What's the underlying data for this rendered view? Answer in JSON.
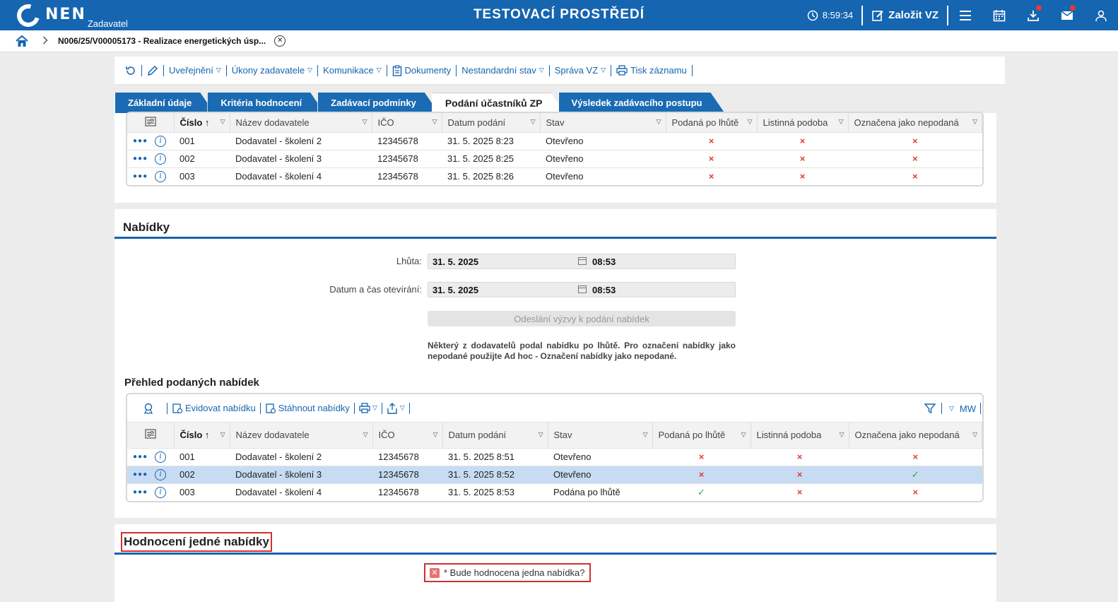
{
  "header": {
    "logo": "NEN",
    "logo_sub": "Zadavatel",
    "env_title": "TESTOVACÍ PROSTŘEDÍ",
    "clock": "8:59:34",
    "create_label": "Založit VZ"
  },
  "breadcrumb": {
    "text": "N006/25/V00005173 - Realizace energetických úsp..."
  },
  "actions": {
    "publish": "Uveřejnění",
    "acts": "Úkony zadavatele",
    "communication": "Komunikace",
    "documents": "Dokumenty",
    "nonstandard": "Nestandardní stav",
    "management": "Správa VZ",
    "print": "Tisk záznamu"
  },
  "tabs": [
    {
      "label": "Základní údaje"
    },
    {
      "label": "Kritéria hodnocení"
    },
    {
      "label": "Zadávací podmínky"
    },
    {
      "label": "Podání účastníků ZP"
    },
    {
      "label": "Výsledek zadávacího postupu"
    }
  ],
  "columns": {
    "number": "Číslo",
    "supplier": "Název dodavatele",
    "ico": "IČO",
    "date": "Datum podání",
    "state": "Stav",
    "late": "Podaná po lhůtě",
    "paper": "Listinná podoba",
    "marked": "Označena jako nepodaná"
  },
  "grid1": {
    "rows": [
      {
        "number": "001",
        "supplier": "Dodavatel - školení 2",
        "ico": "12345678",
        "date": "31. 5. 2025 8:23",
        "state": "Otevřeno",
        "late": "x",
        "paper": "x",
        "marked": "x"
      },
      {
        "number": "002",
        "supplier": "Dodavatel - školení 3",
        "ico": "12345678",
        "date": "31. 5. 2025 8:25",
        "state": "Otevřeno",
        "late": "x",
        "paper": "x",
        "marked": "x"
      },
      {
        "number": "003",
        "supplier": "Dodavatel - školení 4",
        "ico": "12345678",
        "date": "31. 5. 2025 8:26",
        "state": "Otevřeno",
        "late": "x",
        "paper": "x",
        "marked": "x"
      }
    ]
  },
  "offers": {
    "title": "Nabídky",
    "deadline_label": "Lhůta:",
    "deadline_date": "31. 5. 2025",
    "deadline_time": "08:53",
    "opening_label": "Datum a čas otevírání:",
    "opening_date": "31. 5. 2025",
    "opening_time": "08:53",
    "send_button": "Odeslání výzvy k podání nabídek",
    "note": "Některý z dodavatelů podal nabídku po lhůtě. Pro označení nabídky jako nepodané použijte Ad hoc - Označení nabídky jako nepodané.",
    "overview_title": "Přehled podaných nabídek",
    "toolbar": {
      "register": "Evidovat nabídku",
      "download": "Stáhnout nabídky",
      "mw": "MW"
    }
  },
  "grid2": {
    "rows": [
      {
        "number": "001",
        "supplier": "Dodavatel - školení 2",
        "ico": "12345678",
        "date": "31. 5. 2025 8:51",
        "state": "Otevřeno",
        "late": "x",
        "paper": "x",
        "marked": "x",
        "selected": false
      },
      {
        "number": "002",
        "supplier": "Dodavatel - školení 3",
        "ico": "12345678",
        "date": "31. 5. 2025 8:52",
        "state": "Otevřeno",
        "late": "x",
        "paper": "x",
        "marked": "ok",
        "selected": true
      },
      {
        "number": "003",
        "supplier": "Dodavatel - školení 4",
        "ico": "12345678",
        "date": "31. 5. 2025 8:53",
        "state": "Podána po lhůtě",
        "late": "ok",
        "paper": "x",
        "marked": "x",
        "selected": false
      }
    ]
  },
  "evaluation": {
    "title": "Hodnocení jedné nabídky",
    "question": "* Bude hodnocena jedna nabídka?"
  },
  "colors": {
    "primary": "#1565b0",
    "error": "#e53935",
    "success": "#2e9e3e",
    "selected_row": "#c7dcf3"
  },
  "icons": {
    "cross": "×",
    "check": "✓"
  }
}
